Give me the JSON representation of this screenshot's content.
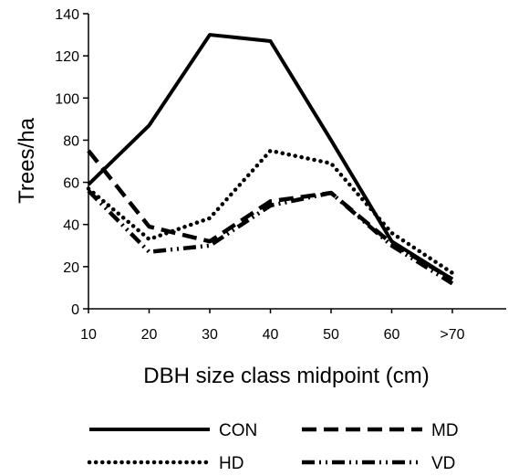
{
  "chart_data": {
    "type": "line",
    "xlabel": "DBH size class midpoint (cm)",
    "ylabel": "Trees/ha",
    "categories": [
      "10",
      "20",
      "30",
      "40",
      "50",
      "60",
      ">70"
    ],
    "ylim": [
      0,
      140
    ],
    "yticks": [
      0,
      20,
      40,
      60,
      80,
      100,
      120,
      140
    ],
    "grid": false,
    "legend_position": "bottom",
    "series": [
      {
        "name": "CON",
        "style": "solid",
        "values": [
          59,
          87,
          130,
          127,
          80,
          32,
          14
        ]
      },
      {
        "name": "MD",
        "style": "dashed",
        "values": [
          75,
          39,
          32,
          51,
          55,
          31,
          14
        ]
      },
      {
        "name": "HD",
        "style": "dotted",
        "values": [
          57,
          33,
          43,
          75,
          69,
          36,
          17
        ]
      },
      {
        "name": "VD",
        "style": "dash-dot",
        "values": [
          56,
          27,
          30,
          49,
          55,
          30,
          12
        ]
      }
    ]
  }
}
